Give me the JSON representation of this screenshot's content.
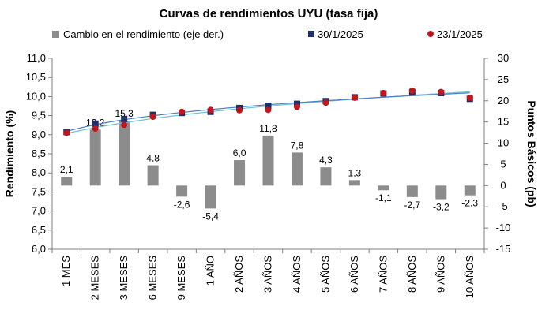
{
  "chart_data": {
    "type": "bar+line",
    "title": "Curvas de rendimientos UYU (tasa fija)",
    "categories": [
      "1 MES",
      "2 MESES",
      "3 MESES",
      "6 MESES",
      "9 MESES",
      "1 AÑO",
      "2 AÑOS",
      "3 AÑOS",
      "4 AÑOS",
      "5 AÑOS",
      "6 AÑOS",
      "7 AÑOS",
      "8 AÑOS",
      "9 AÑOS",
      "10 AÑOS"
    ],
    "ylabel": "Rendimiento (%)",
    "y2label": "Puntos Básicos (pb)",
    "ylim": [
      6.0,
      11.0
    ],
    "y2lim": [
      -15,
      30
    ],
    "yticks": [
      "6,0",
      "6,5",
      "7,0",
      "7,5",
      "8,0",
      "8,5",
      "9,0",
      "9,5",
      "10,0",
      "10,5",
      "11,0"
    ],
    "y2ticks": [
      "-15",
      "-10",
      "-5",
      "0",
      "5",
      "10",
      "15",
      "20",
      "25",
      "30"
    ],
    "legend_position": "top",
    "series": [
      {
        "name": "Cambio en el rendimiento (eje der.)",
        "type": "bar",
        "axis": "right",
        "color": "#8c8c8c",
        "values": [
          2.1,
          13.2,
          15.3,
          4.8,
          -2.6,
          -5.4,
          6.0,
          11.8,
          7.8,
          4.3,
          1.3,
          -1.1,
          -2.7,
          -3.2,
          -2.3
        ],
        "labels": [
          "2,1",
          "13,2",
          "15,3",
          "4,8",
          "-2,6",
          "-5,4",
          "6,0",
          "11,8",
          "7,8",
          "4,3",
          "1,3",
          "-1,1",
          "-2,7",
          "-3,2",
          "-2,3"
        ]
      },
      {
        "name": "30/1/2025",
        "type": "scatter",
        "axis": "left",
        "marker": "square",
        "color": "#1f2f6b",
        "fit_color": "#4a7fc1",
        "values": [
          9.07,
          9.29,
          9.41,
          9.52,
          9.57,
          9.6,
          9.7,
          9.76,
          9.81,
          9.88,
          9.98,
          10.08,
          10.12,
          10.09,
          9.94
        ]
      },
      {
        "name": "23/1/2025",
        "type": "scatter",
        "axis": "left",
        "marker": "circle",
        "color": "#c0161c",
        "fit_color": "#6fc3cf",
        "values": [
          9.05,
          9.16,
          9.26,
          9.47,
          9.6,
          9.65,
          9.64,
          9.65,
          9.73,
          9.84,
          9.97,
          10.09,
          10.15,
          10.12,
          9.97
        ]
      }
    ]
  }
}
